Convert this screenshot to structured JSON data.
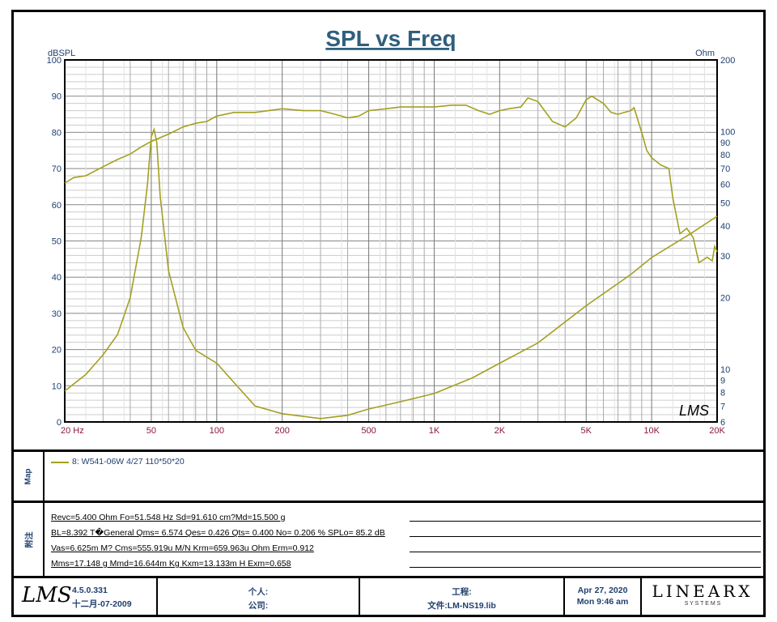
{
  "chart_data": {
    "type": "line",
    "title": "SPL vs Freq",
    "xscale": "log",
    "xlim": [
      20,
      20000
    ],
    "xticks": [
      {
        "v": 20,
        "label": "20  Hz"
      },
      {
        "v": 50,
        "label": "50"
      },
      {
        "v": 100,
        "label": "100"
      },
      {
        "v": 200,
        "label": "200"
      },
      {
        "v": 500,
        "label": "500"
      },
      {
        "v": 1000,
        "label": "1K"
      },
      {
        "v": 2000,
        "label": "2K"
      },
      {
        "v": 5000,
        "label": "5K"
      },
      {
        "v": 10000,
        "label": "10K"
      },
      {
        "v": 20000,
        "label": "20K"
      }
    ],
    "ylabel": "dBSPL",
    "ylim": [
      0,
      100
    ],
    "yticks": [
      0,
      10,
      20,
      30,
      40,
      50,
      60,
      70,
      80,
      90,
      100
    ],
    "y2label": "Ohm",
    "y2scale": "log",
    "y2lim": [
      6,
      200
    ],
    "y2ticks": [
      6,
      7,
      8,
      9,
      10,
      20,
      30,
      40,
      50,
      60,
      70,
      80,
      90,
      100,
      200
    ],
    "grid": true,
    "color": "#a3a020",
    "series": [
      {
        "axis": "left",
        "x": [
          20,
          22,
          25,
          30,
          35,
          40,
          45,
          50,
          60,
          70,
          80,
          90,
          100,
          120,
          150,
          200,
          250,
          300,
          350,
          400,
          450,
          500,
          600,
          700,
          800,
          1000,
          1200,
          1400,
          1600,
          1800,
          2000,
          2200,
          2500,
          2700,
          3000,
          3500,
          4000,
          4500,
          5000,
          5300,
          6000,
          6500,
          7000,
          8000,
          8300,
          9000,
          9500,
          10000,
          11000,
          12000,
          12500,
          13500,
          14500,
          15500,
          16500,
          18000,
          19000,
          19500,
          20000
        ],
        "y": [
          66,
          67.5,
          68,
          70.5,
          72.5,
          74,
          76,
          77.5,
          79.5,
          81.5,
          82.5,
          83,
          84.5,
          85.5,
          85.5,
          86.5,
          86,
          86,
          85,
          84,
          84.5,
          86,
          86.5,
          87,
          87,
          87,
          87.5,
          87.5,
          86,
          85,
          86,
          86.5,
          87,
          89.5,
          88.5,
          83,
          81.5,
          84,
          89,
          90,
          88,
          85.5,
          85,
          86,
          86.8,
          80,
          75,
          73,
          71,
          70,
          62,
          52,
          53.5,
          51,
          44,
          45.5,
          44.5,
          48.5,
          47
        ]
      },
      {
        "axis": "right",
        "x": [
          20,
          25,
          30,
          35,
          40,
          45,
          48,
          50,
          51.5,
          53,
          55,
          60,
          70,
          80,
          100,
          150,
          200,
          300,
          400,
          500,
          700,
          1000,
          1500,
          2000,
          3000,
          5000,
          8000,
          10000,
          15000,
          20000
        ],
        "y": [
          8.1,
          9.5,
          11.5,
          14,
          20,
          36,
          60,
          95,
          102,
          90,
          53,
          26,
          15,
          12,
          10.6,
          7,
          6.5,
          6.2,
          6.4,
          6.8,
          7.3,
          7.9,
          9.2,
          10.6,
          12.9,
          18.5,
          25,
          29.5,
          37,
          44
        ]
      }
    ],
    "watermark": "LMS"
  },
  "legend": {
    "section_label": "Map",
    "entry": "8: W541-06W 4/27  110*50*20"
  },
  "notes": {
    "section_label": "附注",
    "lines": [
      "Revc=5.400 Ohm  Fo=51.548 Hz  Sd=91.610 cm?Md=15.500 g",
      "BL=8.392 T�General  Qms= 6.574  Qes= 0.426  Qts= 0.400  No= 0.206 %  SPLo= 85.2 dB",
      "Vas=6.625m M? Cms=555.919u M/N  Krm=659.963u Ohm  Erm=0.912",
      "Mms=17.148 g  Mmd=16.644m Kg  Kxm=13.133m H  Exm=0.658"
    ]
  },
  "footer": {
    "logo": "LMS",
    "version": "4.5.0.331",
    "build_date": "十二月-07-2009",
    "personal": "个人:",
    "company": "公司:",
    "project": "工程:",
    "file": "文件:LM-NS19.lib",
    "date": "Apr 27, 2020",
    "time": "Mon  9:46 am",
    "brand": "LINEARX",
    "brand_sub": "S Y S T E M S"
  }
}
